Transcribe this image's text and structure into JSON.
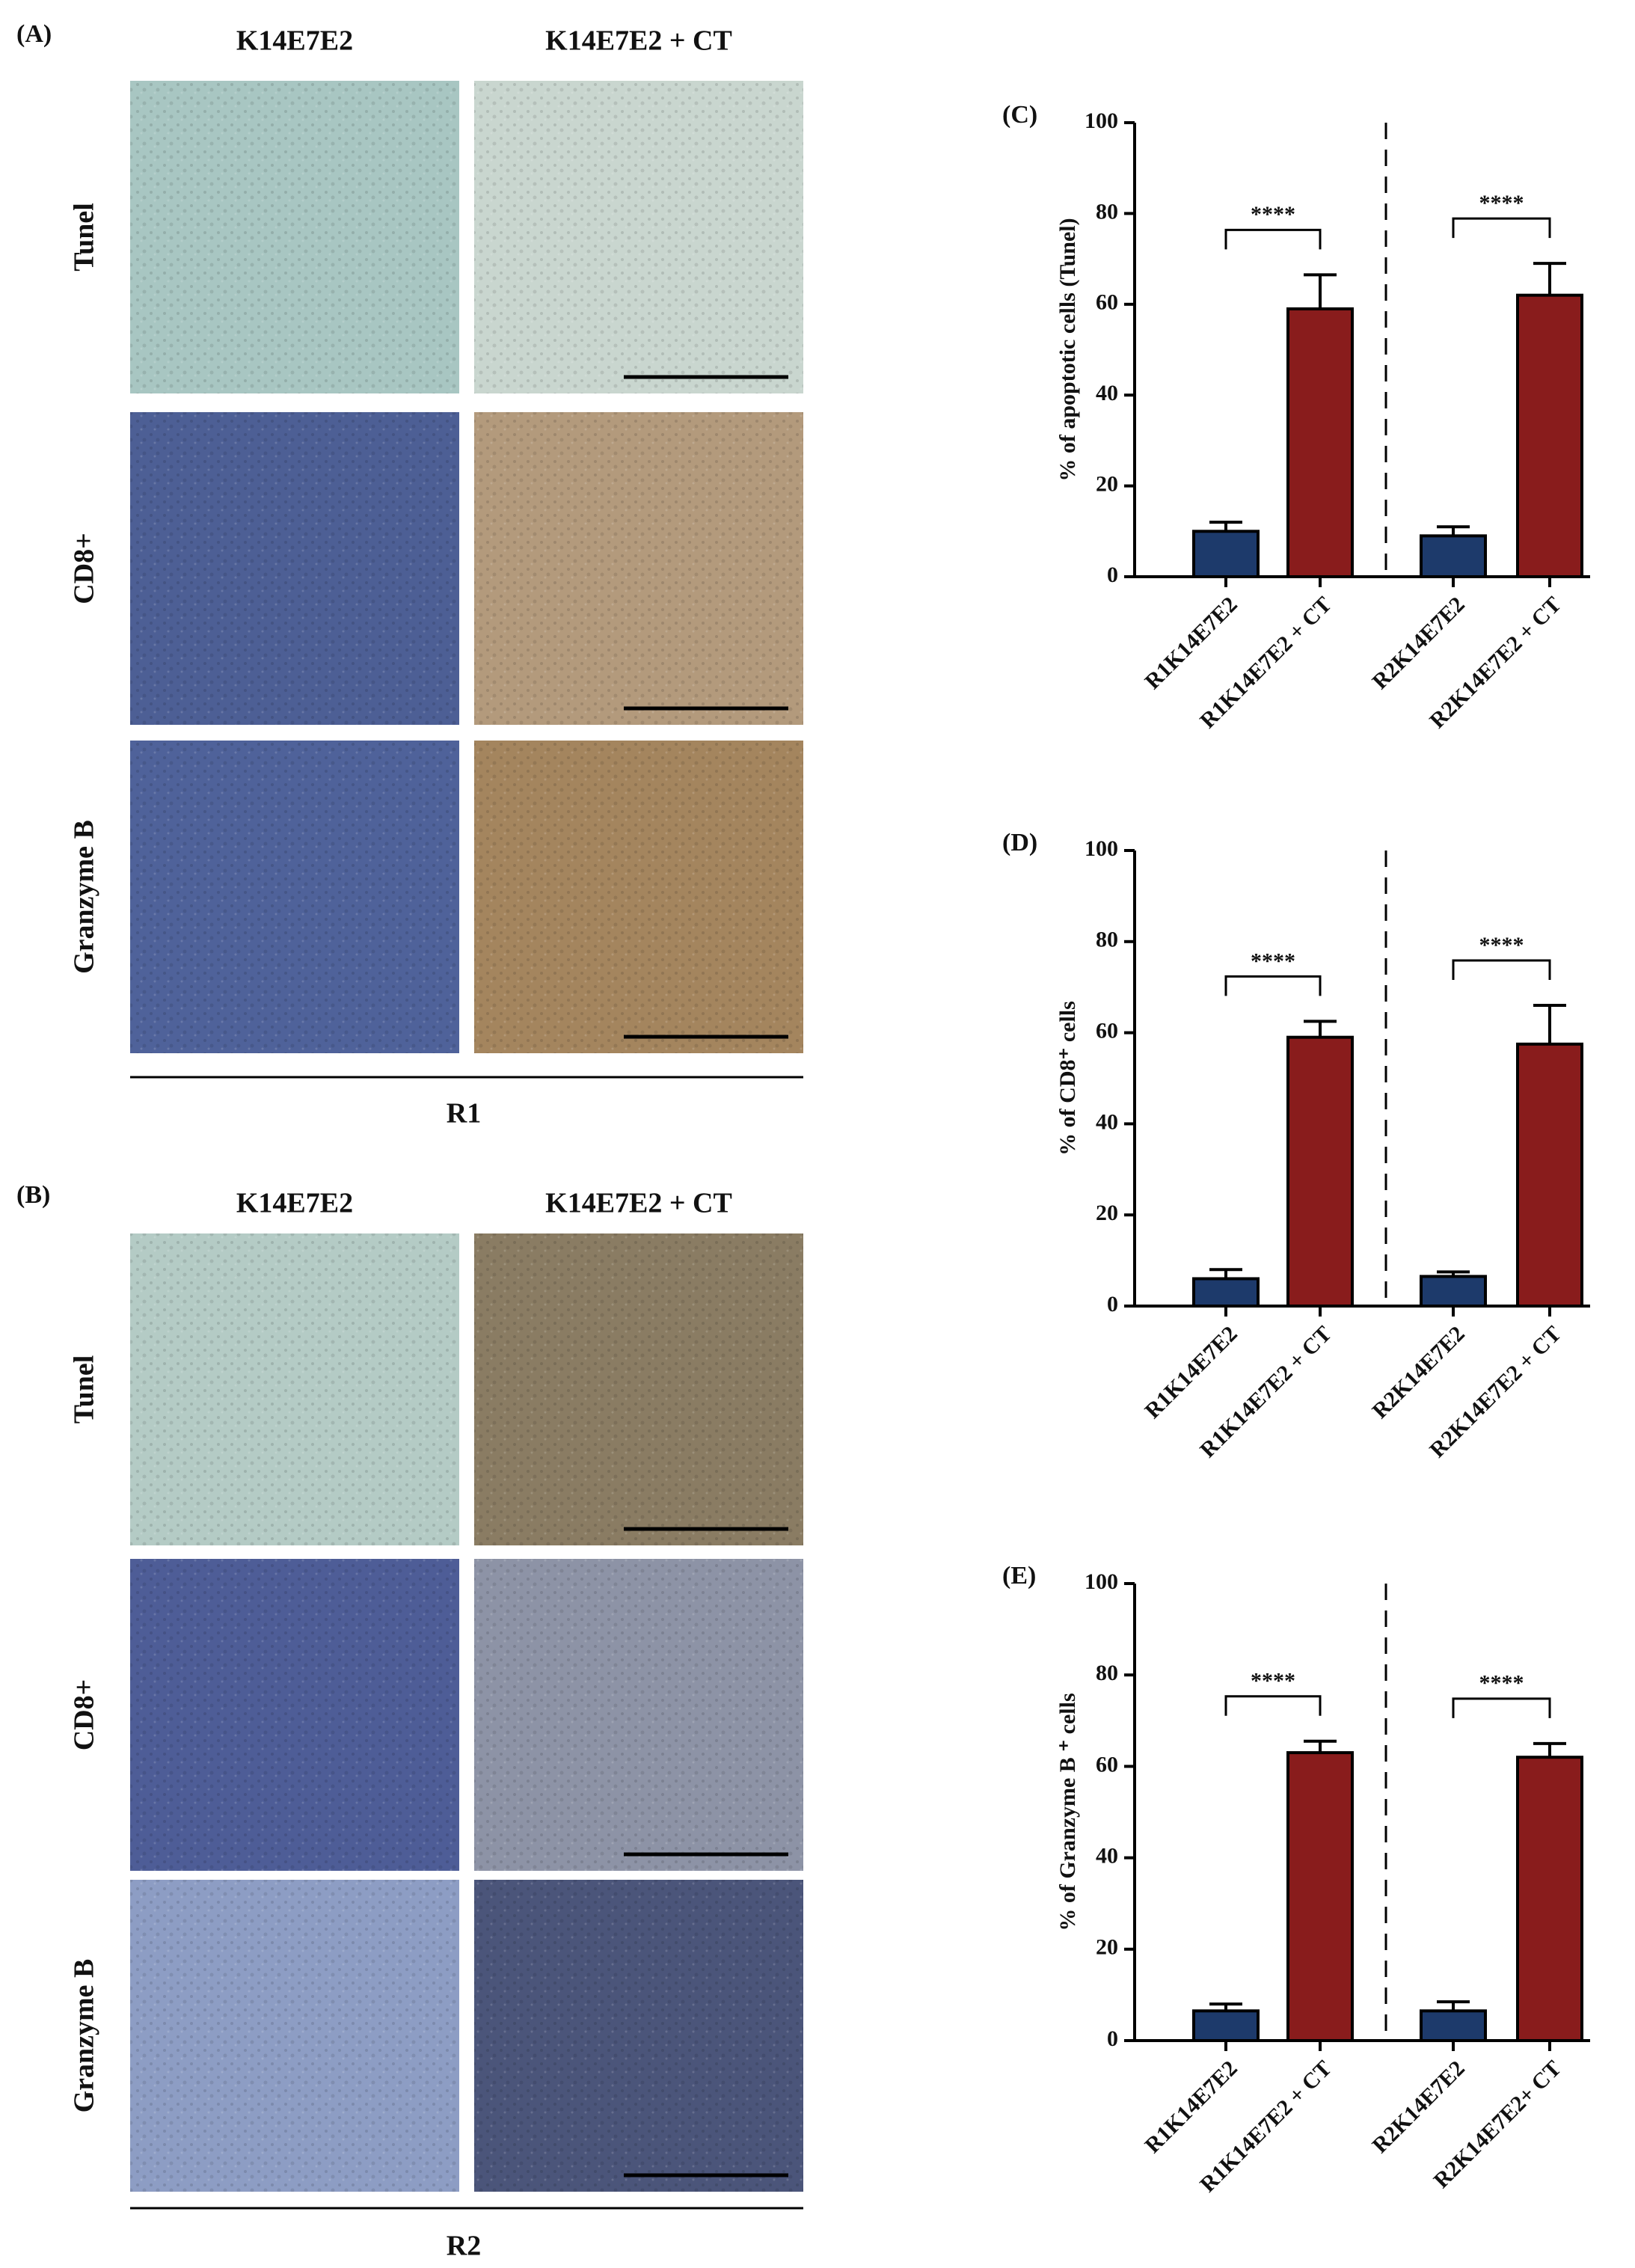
{
  "panels": [
    {
      "label": "(A)",
      "columns": [
        "K14E7E2",
        "K14E7E2 + CT"
      ],
      "rows": [
        "Tunel",
        "CD8+",
        "Granzyme B"
      ],
      "footer": "R1"
    },
    {
      "label": "(B)",
      "columns": [
        "K14E7E2",
        "K14E7E2 + CT"
      ],
      "rows": [
        "Tunel",
        "CD8+",
        "Granzyme B"
      ],
      "footer": "R2"
    }
  ],
  "chart_data": [
    {
      "type": "bar",
      "title": "(C)",
      "y_label": "% of apoptotic cells (Tunel)",
      "categories": [
        "R1K14E7E2",
        "R1K14E7E2 + CT",
        "R2K14E7E2",
        "R2K14E7E2 + CT"
      ],
      "values": [
        10,
        59,
        9,
        62
      ],
      "errors": [
        2,
        7.5,
        2,
        7
      ],
      "colors": [
        "#1d3a6b",
        "#891c1c",
        "#1d3a6b",
        "#891c1c"
      ],
      "annotations": [
        "****",
        "****"
      ],
      "ylim": [
        0,
        100
      ],
      "yticks": [
        0,
        20,
        40,
        60,
        80,
        100
      ]
    },
    {
      "type": "bar",
      "title": "(D)",
      "y_label": "% of CD8⁺ cells",
      "categories": [
        "R1K14E7E2",
        "R1K14E7E2 + CT",
        "R2K14E7E2",
        "R2K14E7E2 + CT"
      ],
      "values": [
        6,
        59,
        6.5,
        57.5
      ],
      "errors": [
        2,
        3.5,
        1,
        8.5
      ],
      "colors": [
        "#1d3a6b",
        "#891c1c",
        "#1d3a6b",
        "#891c1c"
      ],
      "annotations": [
        "****",
        "****"
      ],
      "ylim": [
        0,
        100
      ],
      "yticks": [
        0,
        20,
        40,
        60,
        80,
        100
      ]
    },
    {
      "type": "bar",
      "title": "(E)",
      "y_label": "% of Granzyme B ⁺ cells",
      "categories": [
        "R1K14E7E2",
        "R1K14E7E2 + CT",
        "R2K14E7E2",
        "R2K14E7E2+ CT"
      ],
      "values": [
        6.5,
        63,
        6.5,
        62
      ],
      "errors": [
        1.5,
        2.5,
        2,
        3
      ],
      "colors": [
        "#1d3a6b",
        "#891c1c",
        "#1d3a6b",
        "#891c1c"
      ],
      "annotations": [
        "****",
        "****"
      ],
      "ylim": [
        0,
        100
      ],
      "yticks": [
        0,
        20,
        40,
        60,
        80,
        100
      ]
    }
  ]
}
